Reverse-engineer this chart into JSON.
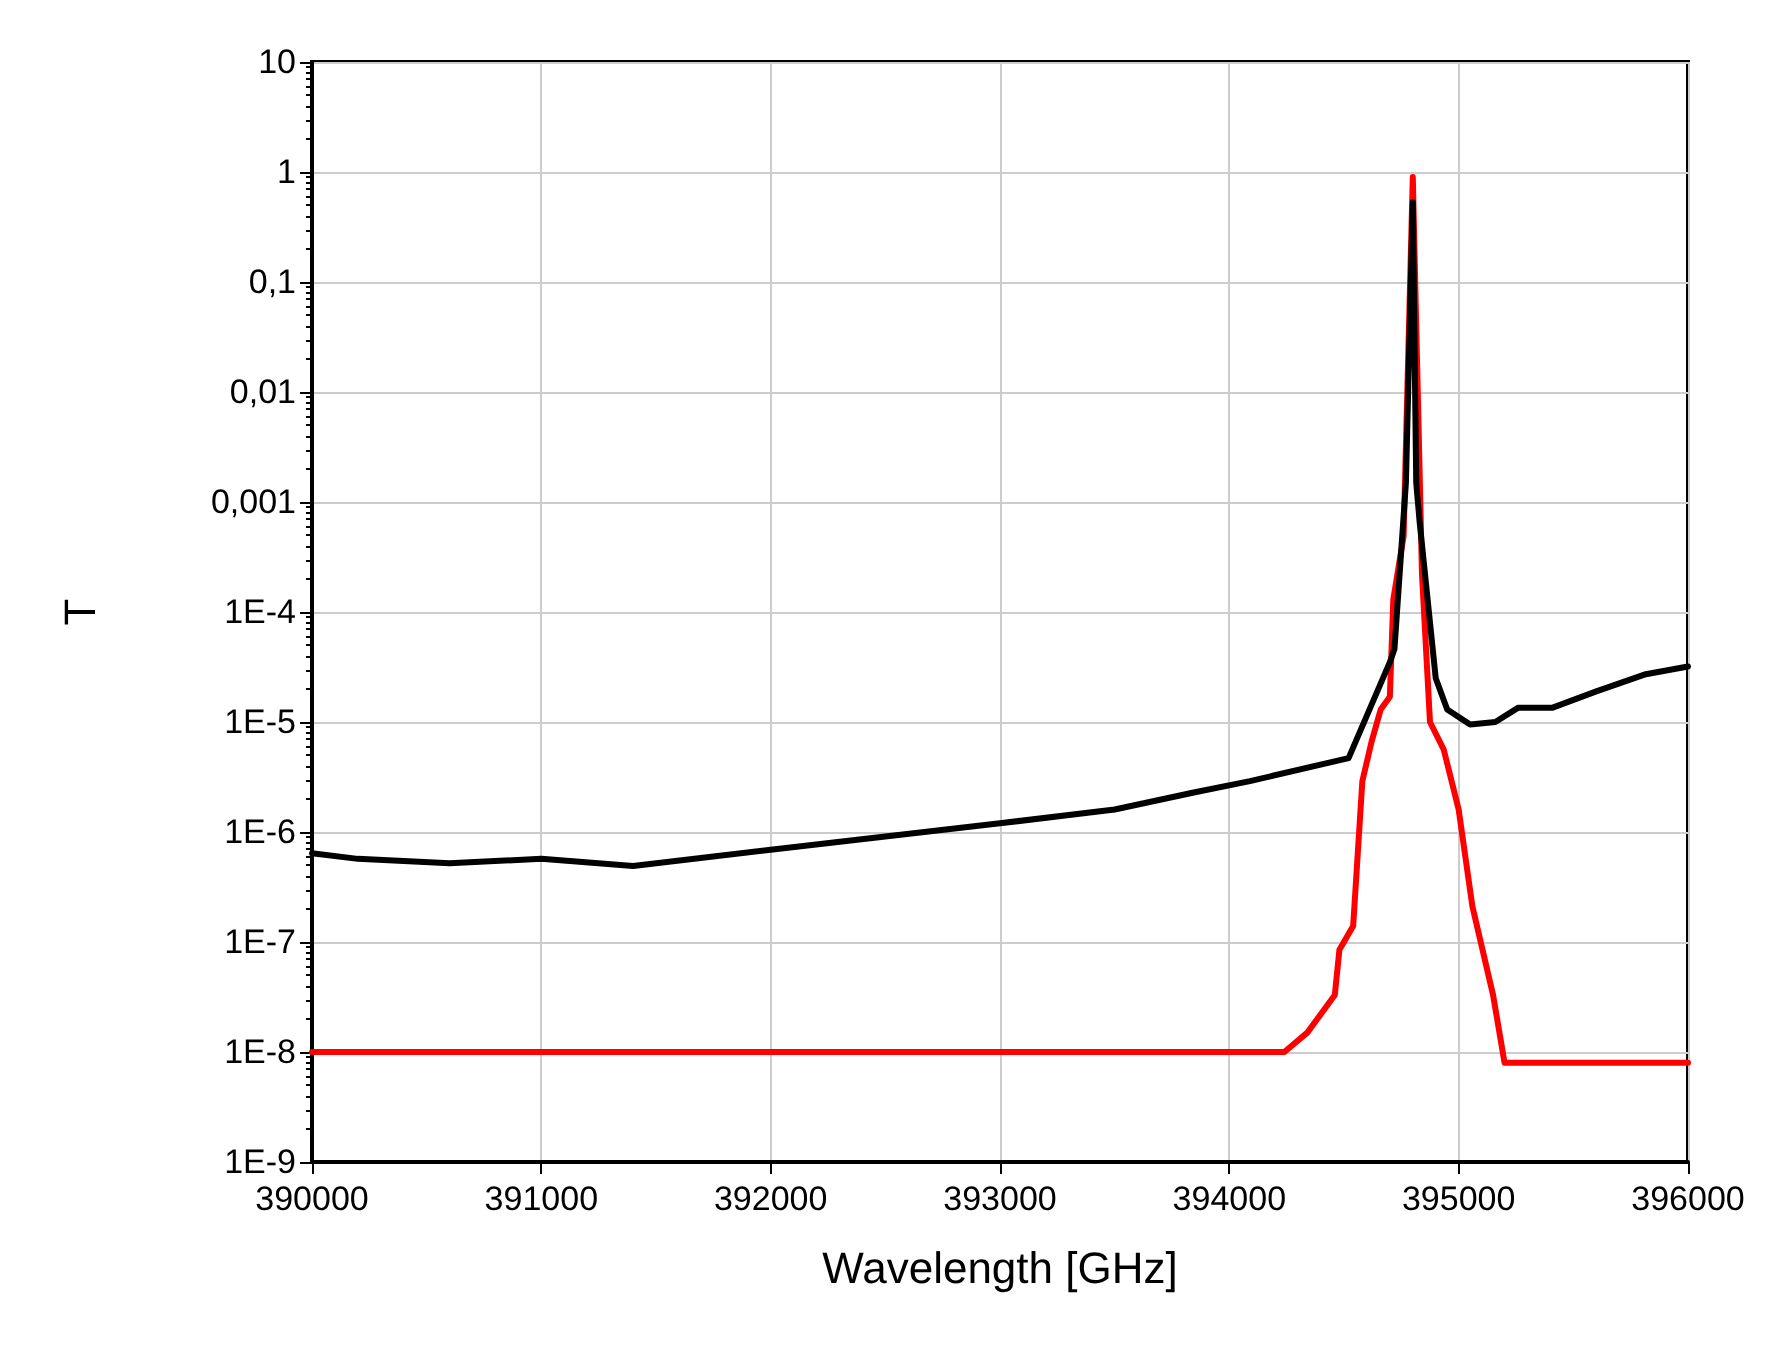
{
  "chart_data": {
    "type": "line",
    "xlabel": "Wavelength [GHz]",
    "ylabel": "T",
    "log": "y",
    "grid": true,
    "marker": "none",
    "line_style": "solid",
    "xlim": [
      390000,
      396000
    ],
    "xticks": [
      390000,
      391000,
      392000,
      393000,
      394000,
      395000,
      396000
    ],
    "ylim": [
      1e-09,
      10
    ],
    "yticks": [
      {
        "value": 1e-09,
        "label": "1E-9"
      },
      {
        "value": 1e-08,
        "label": "1E-8"
      },
      {
        "value": 1e-07,
        "label": "1E-7"
      },
      {
        "value": 1e-06,
        "label": "1E-6"
      },
      {
        "value": 1e-05,
        "label": "1E-5"
      },
      {
        "value": 0.0001,
        "label": "1E-4"
      },
      {
        "value": 0.001,
        "label": "0,001"
      },
      {
        "value": 0.01,
        "label": "0,01"
      },
      {
        "value": 0.1,
        "label": "0,1"
      },
      {
        "value": 1,
        "label": "1"
      },
      {
        "value": 10,
        "label": "10"
      }
    ],
    "series": [
      {
        "color": "#ff0000",
        "x": [
          390000,
          394240,
          394340,
          394460,
          394480,
          394540,
          394580,
          394620,
          394660,
          394700,
          394715,
          394760,
          394800,
          394840,
          394875,
          394935,
          395000,
          395060,
          395150,
          395200,
          396000
        ],
        "values": [
          1e-08,
          1e-08,
          1.5e-08,
          3.3e-08,
          8.5e-08,
          1.4e-07,
          2.9e-06,
          6.6e-06,
          1.3e-05,
          1.7e-05,
          0.00013,
          0.00049,
          0.9,
          0.00022,
          1e-05,
          5.6e-06,
          1.6e-06,
          2.1e-07,
          3.3e-08,
          8e-09,
          8e-09
        ]
      },
      {
        "color": "#000000",
        "x": [
          390000,
          390200,
          390600,
          391000,
          391400,
          392000,
          393000,
          393500,
          393850,
          394090,
          394520,
          394700,
          394720,
          394770,
          394800,
          394815,
          394830,
          394900,
          394950,
          395050,
          395160,
          395260,
          395410,
          395600,
          395810,
          396000
        ],
        "values": [
          6.4e-07,
          5.7e-07,
          5.2e-07,
          5.7e-07,
          4.9e-07,
          6.9e-07,
          1.2e-06,
          1.6e-06,
          2.3e-06,
          2.9e-06,
          4.7e-06,
          3.5e-05,
          4.6e-05,
          0.0015,
          0.53,
          0.0015,
          0.00065,
          2.5e-05,
          1.3e-05,
          9.5e-06,
          1e-05,
          1.35e-05,
          1.35e-05,
          1.9e-05,
          2.7e-05,
          3.2e-05
        ]
      }
    ]
  }
}
